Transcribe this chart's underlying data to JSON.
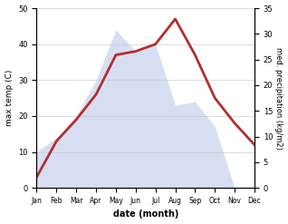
{
  "months": [
    "Jan",
    "Feb",
    "Mar",
    "Apr",
    "May",
    "Jun",
    "Jul",
    "Aug",
    "Sep",
    "Oct",
    "Nov",
    "Dec"
  ],
  "temperature": [
    3,
    13,
    19,
    26,
    37,
    38,
    40,
    47,
    37,
    25,
    18,
    12
  ],
  "precipitation": [
    10,
    14,
    20,
    30,
    44,
    38,
    40,
    23,
    24,
    17,
    0,
    0
  ],
  "temp_color": "#b03030",
  "precip_color_fill": "#b8c4e8",
  "title": "",
  "xlabel": "date (month)",
  "ylabel_left": "max temp (C)",
  "ylabel_right": "med. precipitation (kg/m2)",
  "ylim_left": [
    0,
    50
  ],
  "ylim_right": [
    0,
    35
  ],
  "yticks_left": [
    0,
    10,
    20,
    30,
    40,
    50
  ],
  "yticks_right": [
    0,
    5,
    10,
    15,
    20,
    25,
    30,
    35
  ],
  "bg_color": "#ffffff",
  "temp_linewidth": 2.0,
  "precip_alpha": 0.55
}
